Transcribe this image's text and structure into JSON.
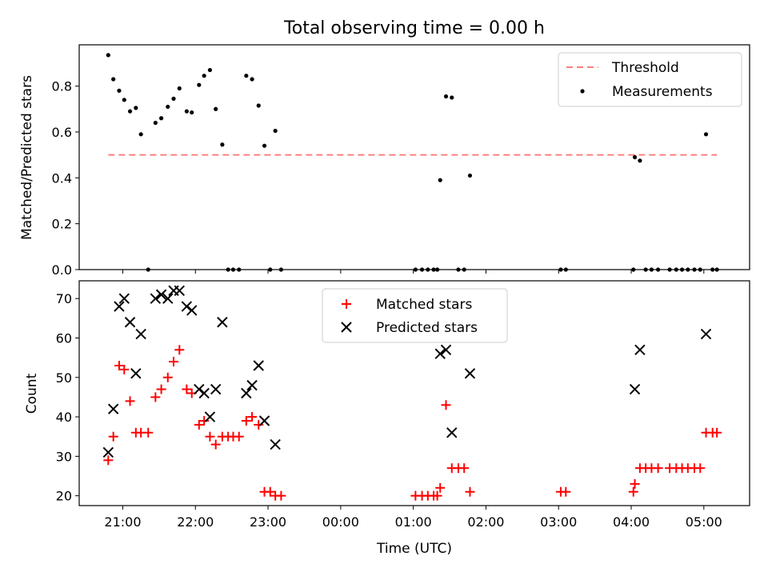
{
  "title": "Total observing time = 0.00 h",
  "chart_data": [
    {
      "type": "scatter",
      "panel": "top",
      "ylabel": "Matched/Predicted stars",
      "xlabel": "",
      "ylim": [
        0,
        0.98
      ],
      "yticks": [
        0.0,
        0.2,
        0.4,
        0.6,
        0.8
      ],
      "ytick_labels": [
        "0.0",
        "0.2",
        "0.4",
        "0.6",
        "0.8"
      ],
      "xlim_hours": [
        20.4,
        29.63
      ],
      "legend_position": "top-right",
      "grid": false,
      "threshold": {
        "name": "Threshold",
        "value": 0.5,
        "x_range": [
          20.8,
          29.18
        ],
        "color": "#ff7f7f",
        "style": "dashed"
      },
      "series": [
        {
          "name": "Measurements",
          "color": "#000000",
          "marker": "dot",
          "points": [
            [
              20.8,
              0.935
            ],
            [
              20.87,
              0.83
            ],
            [
              20.95,
              0.78
            ],
            [
              21.02,
              0.74
            ],
            [
              21.1,
              0.69
            ],
            [
              21.18,
              0.705
            ],
            [
              21.25,
              0.59
            ],
            [
              21.35,
              0.0
            ],
            [
              21.45,
              0.64
            ],
            [
              21.53,
              0.66
            ],
            [
              21.62,
              0.71
            ],
            [
              21.7,
              0.745
            ],
            [
              21.78,
              0.79
            ],
            [
              21.88,
              0.69
            ],
            [
              21.95,
              0.685
            ],
            [
              22.05,
              0.805
            ],
            [
              22.12,
              0.845
            ],
            [
              22.2,
              0.87
            ],
            [
              22.28,
              0.7
            ],
            [
              22.37,
              0.545
            ],
            [
              22.45,
              0.0
            ],
            [
              22.52,
              0.0
            ],
            [
              22.6,
              0.0
            ],
            [
              22.7,
              0.845
            ],
            [
              22.78,
              0.83
            ],
            [
              22.87,
              0.715
            ],
            [
              22.95,
              0.54
            ],
            [
              23.03,
              0.0
            ],
            [
              23.1,
              0.605
            ],
            [
              23.18,
              0.0
            ],
            [
              25.03,
              0.0
            ],
            [
              25.12,
              0.0
            ],
            [
              25.2,
              0.0
            ],
            [
              25.28,
              0.0
            ],
            [
              25.33,
              0.0
            ],
            [
              25.37,
              0.39
            ],
            [
              25.45,
              0.755
            ],
            [
              25.53,
              0.75
            ],
            [
              25.62,
              0.0
            ],
            [
              25.7,
              0.0
            ],
            [
              25.78,
              0.41
            ],
            [
              27.03,
              0.0
            ],
            [
              27.1,
              0.0
            ],
            [
              28.03,
              0.0
            ],
            [
              28.05,
              0.49
            ],
            [
              28.12,
              0.475
            ],
            [
              28.2,
              0.0
            ],
            [
              28.28,
              0.0
            ],
            [
              28.37,
              0.0
            ],
            [
              28.53,
              0.0
            ],
            [
              28.62,
              0.0
            ],
            [
              28.7,
              0.0
            ],
            [
              28.78,
              0.0
            ],
            [
              28.87,
              0.0
            ],
            [
              28.95,
              0.0
            ],
            [
              29.03,
              0.59
            ],
            [
              29.12,
              0.0
            ],
            [
              29.18,
              0.0
            ]
          ]
        }
      ]
    },
    {
      "type": "scatter",
      "panel": "bottom",
      "ylabel": "Count",
      "xlabel": "Time (UTC)",
      "ylim": [
        17.5,
        74.5
      ],
      "yticks": [
        20,
        30,
        40,
        50,
        60,
        70
      ],
      "ytick_labels": [
        "20",
        "30",
        "40",
        "50",
        "60",
        "70"
      ],
      "xticks_hours": [
        21,
        22,
        23,
        24,
        25,
        26,
        27,
        28,
        29
      ],
      "xtick_labels": [
        "21:00",
        "22:00",
        "23:00",
        "00:00",
        "01:00",
        "02:00",
        "03:00",
        "04:00",
        "05:00"
      ],
      "xlim_hours": [
        20.4,
        29.63
      ],
      "legend_position": "top-center",
      "grid": false,
      "series": [
        {
          "name": "Matched stars",
          "color": "#ff0000",
          "marker": "plus",
          "points": [
            [
              20.8,
              29
            ],
            [
              20.87,
              35
            ],
            [
              20.95,
              53
            ],
            [
              21.02,
              52
            ],
            [
              21.1,
              44
            ],
            [
              21.18,
              36
            ],
            [
              21.25,
              36
            ],
            [
              21.35,
              36
            ],
            [
              21.45,
              45
            ],
            [
              21.53,
              47
            ],
            [
              21.62,
              50
            ],
            [
              21.7,
              54
            ],
            [
              21.78,
              57
            ],
            [
              21.88,
              47
            ],
            [
              21.95,
              46
            ],
            [
              22.05,
              38
            ],
            [
              22.12,
              39
            ],
            [
              22.2,
              35
            ],
            [
              22.28,
              33
            ],
            [
              22.37,
              35
            ],
            [
              22.45,
              35
            ],
            [
              22.52,
              35
            ],
            [
              22.6,
              35
            ],
            [
              22.7,
              39
            ],
            [
              22.78,
              40
            ],
            [
              22.87,
              38
            ],
            [
              22.95,
              21
            ],
            [
              23.03,
              21
            ],
            [
              23.1,
              20
            ],
            [
              23.18,
              20
            ],
            [
              25.03,
              20
            ],
            [
              25.12,
              20
            ],
            [
              25.2,
              20
            ],
            [
              25.28,
              20
            ],
            [
              25.33,
              20
            ],
            [
              25.37,
              22
            ],
            [
              25.45,
              43
            ],
            [
              25.53,
              27
            ],
            [
              25.62,
              27
            ],
            [
              25.7,
              27
            ],
            [
              25.78,
              21
            ],
            [
              27.03,
              21
            ],
            [
              27.1,
              21
            ],
            [
              28.03,
              21
            ],
            [
              28.05,
              23
            ],
            [
              28.12,
              27
            ],
            [
              28.2,
              27
            ],
            [
              28.28,
              27
            ],
            [
              28.37,
              27
            ],
            [
              28.53,
              27
            ],
            [
              28.62,
              27
            ],
            [
              28.7,
              27
            ],
            [
              28.78,
              27
            ],
            [
              28.87,
              27
            ],
            [
              28.95,
              27
            ],
            [
              29.03,
              36
            ],
            [
              29.12,
              36
            ],
            [
              29.18,
              36
            ]
          ]
        },
        {
          "name": "Predicted stars",
          "color": "#000000",
          "marker": "x",
          "points": [
            [
              20.8,
              31
            ],
            [
              20.87,
              42
            ],
            [
              20.95,
              68
            ],
            [
              21.02,
              70
            ],
            [
              21.1,
              64
            ],
            [
              21.18,
              51
            ],
            [
              21.25,
              61
            ],
            [
              21.45,
              70
            ],
            [
              21.53,
              71
            ],
            [
              21.62,
              70
            ],
            [
              21.7,
              72
            ],
            [
              21.78,
              72
            ],
            [
              21.88,
              68
            ],
            [
              21.95,
              67
            ],
            [
              22.05,
              47
            ],
            [
              22.12,
              46
            ],
            [
              22.2,
              40
            ],
            [
              22.28,
              47
            ],
            [
              22.37,
              64
            ],
            [
              22.7,
              46
            ],
            [
              22.78,
              48
            ],
            [
              22.87,
              53
            ],
            [
              22.95,
              39
            ],
            [
              23.1,
              33
            ],
            [
              25.37,
              56
            ],
            [
              25.45,
              57
            ],
            [
              25.53,
              36
            ],
            [
              25.78,
              51
            ],
            [
              28.05,
              47
            ],
            [
              28.12,
              57
            ],
            [
              29.03,
              61
            ]
          ]
        }
      ]
    }
  ]
}
